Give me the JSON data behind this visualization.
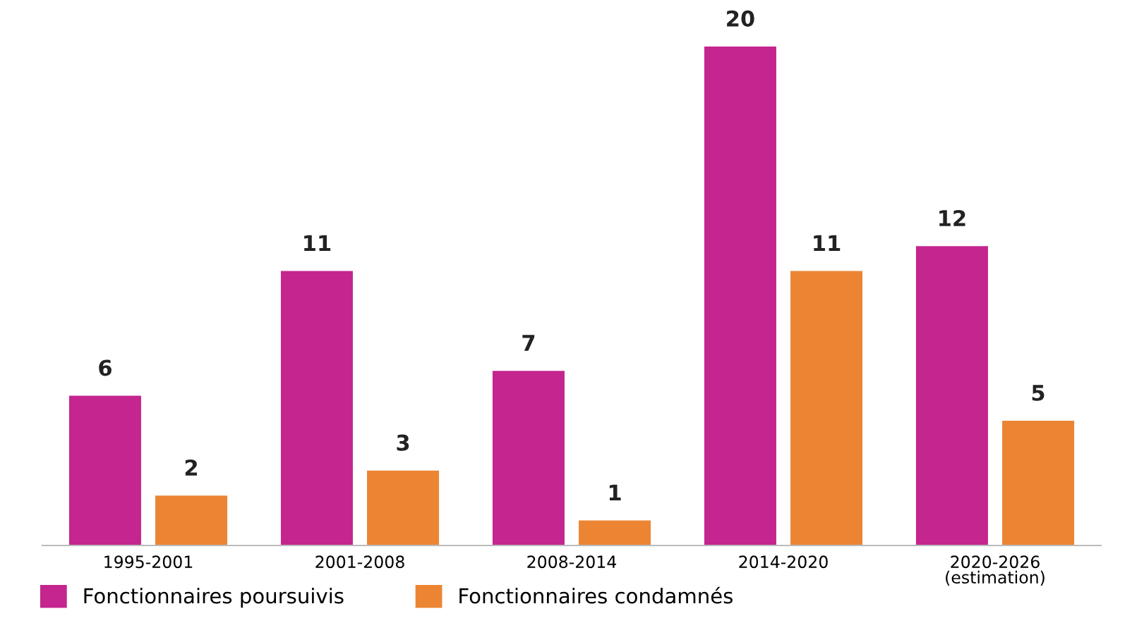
{
  "chart_data": {
    "type": "bar",
    "categories": [
      "1995-2001",
      "2001-2008",
      "2008-2014",
      "2014-2020",
      "2020-2026\n(estimation)"
    ],
    "series": [
      {
        "name": "Fonctionnaires poursuivis",
        "color": "#c5258f",
        "values": [
          6,
          11,
          7,
          20,
          12
        ]
      },
      {
        "name": "Fonctionnaires condamnés",
        "color": "#ec8533",
        "values": [
          2,
          3,
          1,
          11,
          5
        ]
      }
    ],
    "data_labels": true,
    "legend": "bottom left",
    "grid": false,
    "tick_labels": "x"
  }
}
